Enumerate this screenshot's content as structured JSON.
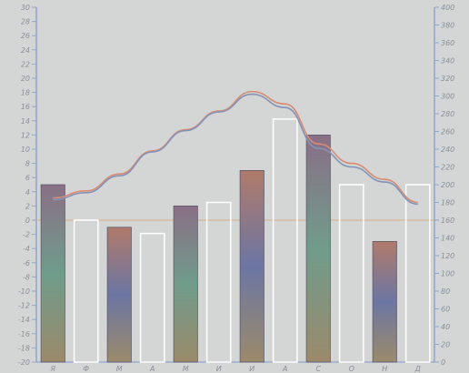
{
  "chart_data": {
    "type": "bar",
    "title": "",
    "xlabel": "",
    "categories": [
      "Я",
      "Ф",
      "М",
      "А",
      "М",
      "И",
      "И",
      "А",
      "С",
      "О",
      "Н",
      "Д"
    ],
    "left_axis": {
      "ylim": [
        -20,
        30
      ],
      "ticks": [
        "-20",
        "-18",
        "-16",
        "-14",
        "-12",
        "-10",
        "-8",
        "-6",
        "-4",
        "-2",
        "0",
        "2",
        "4",
        "6",
        "8",
        "10",
        "12",
        "14",
        "16",
        "18",
        "20",
        "22",
        "24",
        "26",
        "28",
        "30"
      ]
    },
    "right_axis": {
      "ylim": [
        0,
        400
      ],
      "ticks": [
        "0",
        "20",
        "40",
        "60",
        "80",
        "100",
        "120",
        "140",
        "160",
        "180",
        "200",
        "220",
        "240",
        "260",
        "280",
        "300",
        "320",
        "340",
        "360",
        "380",
        "400"
      ]
    },
    "series": [
      {
        "kind": "filled-bars",
        "axis": "left",
        "colors": [
          "#6f9c8b",
          "#8a6f86",
          "#6c76a3",
          "#b07a6a"
        ],
        "values": [
          5,
          null,
          -1,
          null,
          2,
          null,
          7,
          null,
          12,
          null,
          -3,
          null
        ]
      },
      {
        "kind": "outline-bars",
        "axis": "right",
        "color": "#ffffff",
        "values": [
          null,
          160,
          null,
          145,
          null,
          180,
          null,
          274,
          null,
          200,
          null,
          200
        ]
      },
      {
        "kind": "line",
        "axis": "right",
        "color": "#d98b72",
        "values": [
          185,
          193,
          212,
          238,
          262,
          283,
          305,
          291,
          246,
          224,
          206,
          180
        ]
      },
      {
        "kind": "line",
        "axis": "right",
        "color": "#8393b8",
        "values": [
          183,
          191,
          210,
          237,
          261,
          282,
          302,
          287,
          241,
          220,
          203,
          178
        ]
      }
    ],
    "zero_line_color": "#d9a26b",
    "grid": false,
    "legend": "none"
  }
}
